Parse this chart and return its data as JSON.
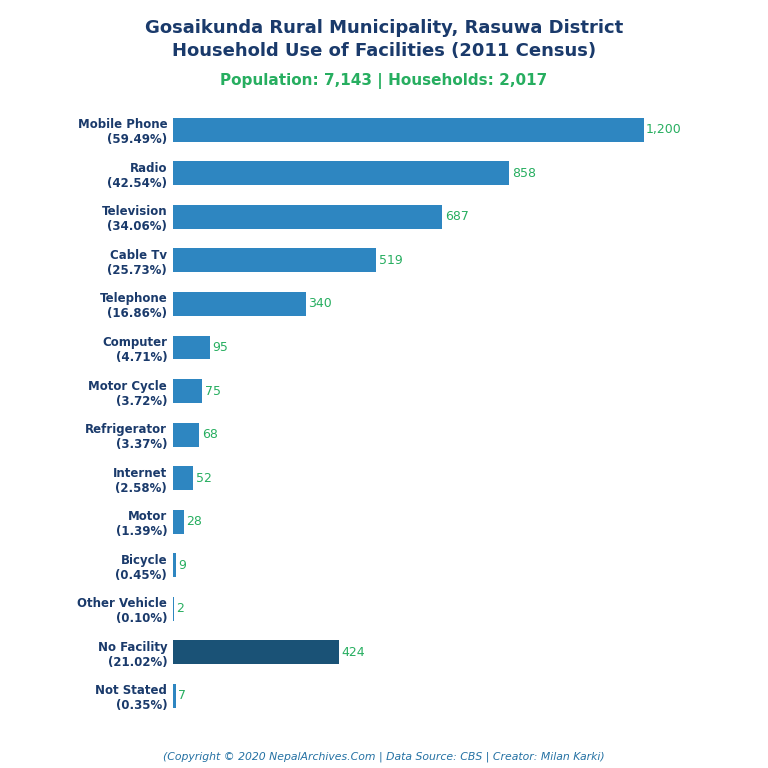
{
  "title_line1": "Gosaikunda Rural Municipality, Rasuwa District",
  "title_line2": "Household Use of Facilities (2011 Census)",
  "subtitle": "Population: 7,143 | Households: 2,017",
  "footer": "(Copyright © 2020 NepalArchives.Com | Data Source: CBS | Creator: Milan Karki)",
  "categories": [
    "Mobile Phone\n(59.49%)",
    "Radio\n(42.54%)",
    "Television\n(34.06%)",
    "Cable Tv\n(25.73%)",
    "Telephone\n(16.86%)",
    "Computer\n(4.71%)",
    "Motor Cycle\n(3.72%)",
    "Refrigerator\n(3.37%)",
    "Internet\n(2.58%)",
    "Motor\n(1.39%)",
    "Bicycle\n(0.45%)",
    "Other Vehicle\n(0.10%)",
    "No Facility\n(21.02%)",
    "Not Stated\n(0.35%)"
  ],
  "values": [
    1200,
    858,
    687,
    519,
    340,
    95,
    75,
    68,
    52,
    28,
    9,
    2,
    424,
    7
  ],
  "bar_color_main": "#2e86c1",
  "bar_color_no_facility": "#1a5276",
  "title_color": "#1a3a6b",
  "subtitle_color": "#27ae60",
  "footer_color": "#2471a3",
  "value_color": "#27ae60",
  "background_color": "#ffffff",
  "xlim": [
    0,
    1380
  ]
}
